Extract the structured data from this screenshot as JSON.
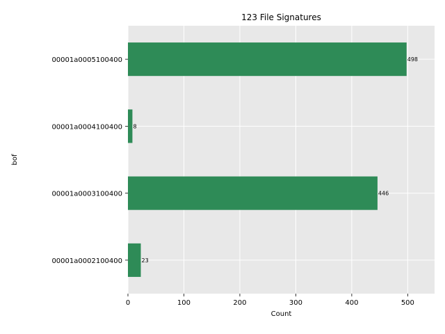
{
  "chart_data": {
    "type": "bar",
    "orientation": "horizontal",
    "title": "123 File Signatures",
    "xlabel": "Count",
    "ylabel": "bof",
    "categories": [
      "00001a0005100400",
      "00001a0004100400",
      "00001a0003100400",
      "00001a0002100400"
    ],
    "values": [
      498,
      8,
      446,
      23
    ],
    "xlim": [
      0,
      548
    ],
    "xticks": [
      0,
      100,
      200,
      300,
      400,
      500
    ],
    "grid": true,
    "bar_color": "#2e8b57",
    "background_color": "#e8e8e8",
    "grid_color": "#ffffff"
  }
}
